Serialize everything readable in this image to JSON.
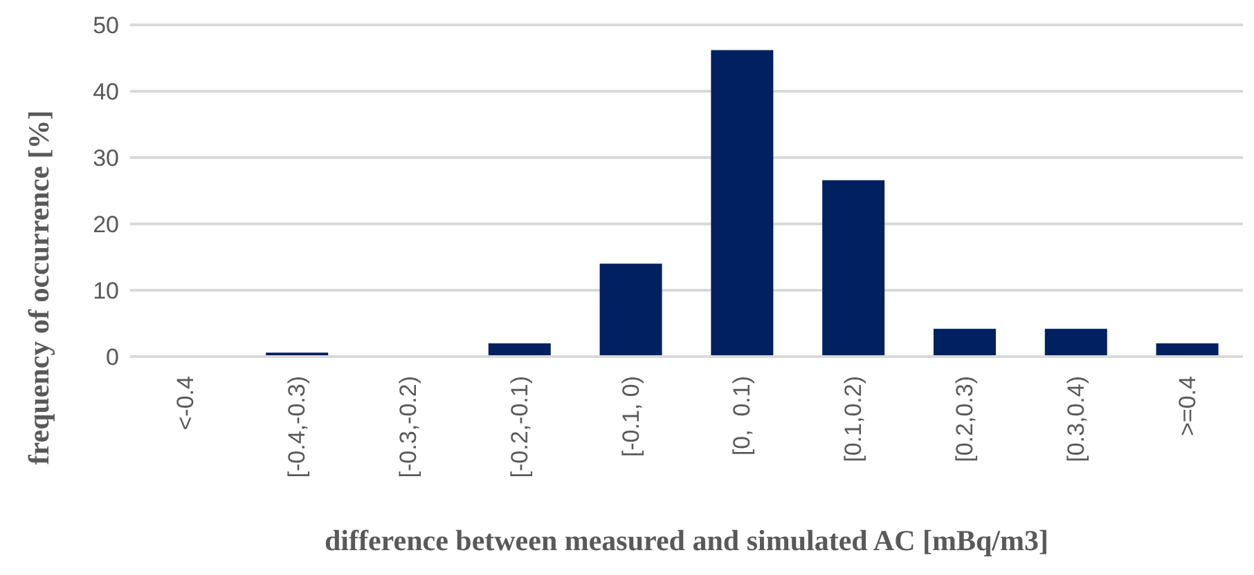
{
  "chart_data": {
    "type": "bar",
    "xlabel": "difference between measured and simulated AC [mBq/m3]",
    "ylabel": "frequency of occurrence [%]",
    "categories": [
      "<-0.4",
      "[-0.4,-0.3)",
      "[-0.3,-0.2)",
      "[-0.2,-0.1)",
      "[-0.1, 0)",
      "[0,  0.1)",
      "[0.1,0.2)",
      "[0.2,0.3)",
      "[0.3,0.4)",
      ">=0.4"
    ],
    "values": [
      0,
      0.6,
      0,
      2,
      14,
      46.2,
      26.6,
      4.2,
      4.2,
      2
    ],
    "color": "#002060",
    "ylim": [
      0,
      50
    ],
    "yticks": [
      0,
      10,
      20,
      30,
      40,
      50
    ],
    "grid": "y"
  }
}
